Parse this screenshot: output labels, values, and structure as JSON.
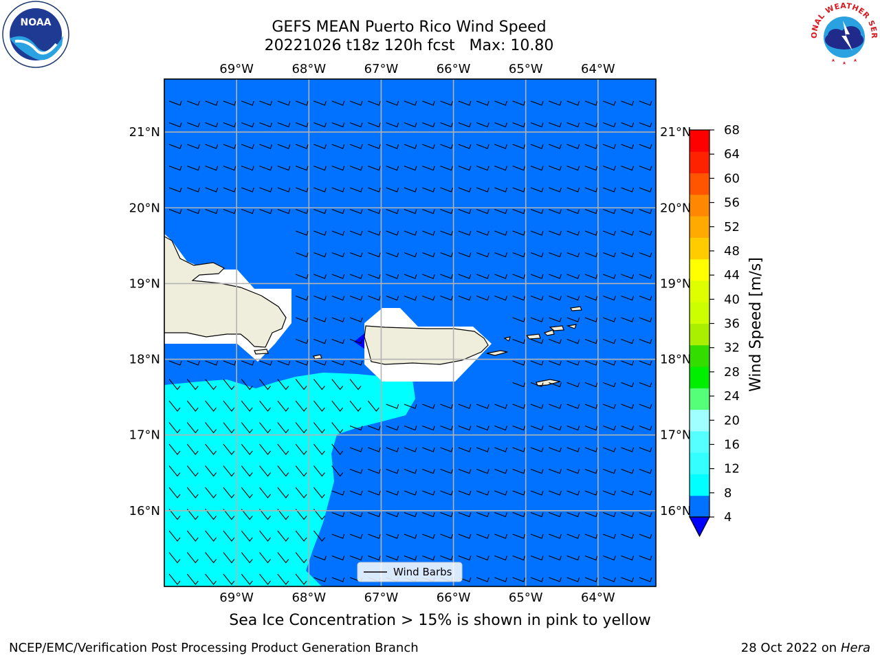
{
  "title": {
    "line1": "GEFS MEAN Puerto Rico Wind Speed",
    "line2": "20221026 t18z 120h fcst   Max: 10.80"
  },
  "logos": [
    {
      "name": "noaa-logo",
      "text": "NOAA"
    },
    {
      "name": "nws-logo",
      "text": "NATIONAL WEATHER SERVICE"
    }
  ],
  "map": {
    "type": "filled-contour-map",
    "region": "Puerto Rico",
    "lon_range": [
      -70,
      -63.2
    ],
    "lat_range": [
      15,
      21.7
    ],
    "lon_ticks": [
      "69°W",
      "68°W",
      "67°W",
      "66°W",
      "65°W",
      "64°W"
    ],
    "lat_ticks": [
      "21°N",
      "20°N",
      "19°N",
      "18°N",
      "17°N",
      "16°N"
    ],
    "grid": true,
    "legend": {
      "label": "Wind Barbs",
      "placement": "bottom-center"
    }
  },
  "colorbar": {
    "label": "Wind Speed [m/s]",
    "ticks": [
      "4",
      "8",
      "12",
      "16",
      "20",
      "24",
      "28",
      "32",
      "36",
      "40",
      "44",
      "48",
      "52",
      "56",
      "60",
      "64",
      "68"
    ],
    "colors": [
      "#0072ff",
      "#00ffff",
      "#33ffff",
      "#55ffff",
      "#a0ffff",
      "#55ff77",
      "#00ee00",
      "#33dd00",
      "#aaee00",
      "#ccff00",
      "#ddff00",
      "#ffff00",
      "#ffcc00",
      "#ffaa00",
      "#ff8800",
      "#ff5500",
      "#ff2200",
      "#ff0000"
    ],
    "under_color": "#0000ff"
  },
  "footer": {
    "note": "Sea Ice Concentration > 15% is shown in pink to yellow",
    "left": "NCEP/EMC/Verification Post Processing Product Generation Branch",
    "right_date": "28 Oct 2022 on ",
    "right_host": "Hera"
  }
}
